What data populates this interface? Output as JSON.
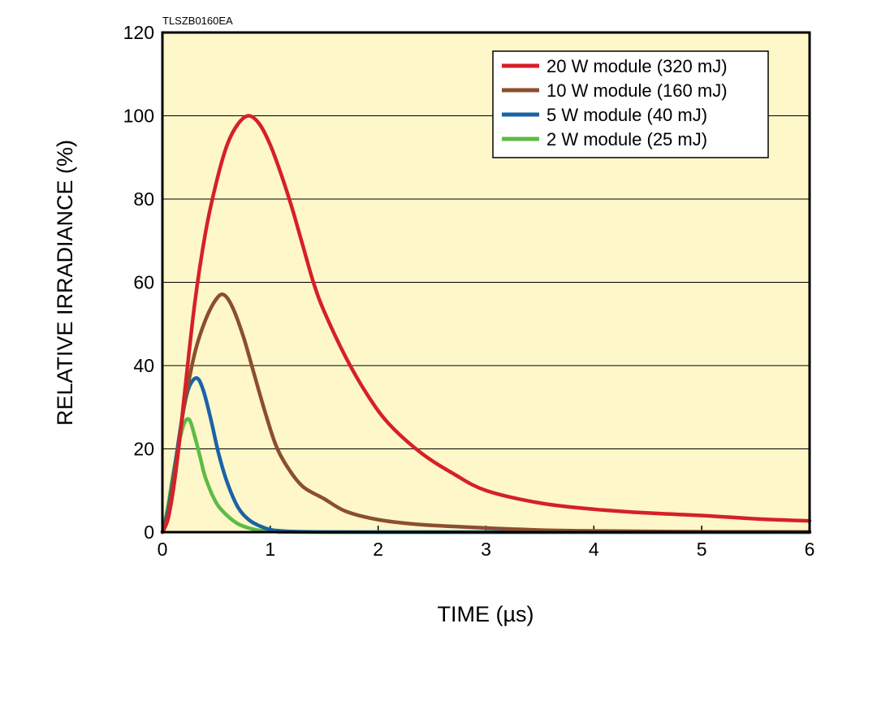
{
  "chart_data": {
    "type": "line",
    "figure_code": "TLSZB0160EA",
    "xlabel": "TIME (µs)",
    "ylabel": "RELATIVE IRRADIANCE (%)",
    "xlim": [
      0,
      6
    ],
    "ylim": [
      0,
      120
    ],
    "xticks": [
      0,
      1,
      2,
      3,
      4,
      5,
      6
    ],
    "yticks": [
      0,
      20,
      40,
      60,
      80,
      100,
      120
    ],
    "grid": "horizontal",
    "background": "#fdf7c9",
    "legend_position": "top-right",
    "series": [
      {
        "name": "20 W module (320 mJ)",
        "color": "#d62027",
        "points": [
          [
            0,
            0
          ],
          [
            0.05,
            3
          ],
          [
            0.1,
            10
          ],
          [
            0.15,
            20
          ],
          [
            0.2,
            32
          ],
          [
            0.3,
            55
          ],
          [
            0.4,
            72
          ],
          [
            0.5,
            84
          ],
          [
            0.6,
            93
          ],
          [
            0.7,
            98
          ],
          [
            0.8,
            100
          ],
          [
            0.9,
            98
          ],
          [
            1.0,
            93
          ],
          [
            1.1,
            86
          ],
          [
            1.2,
            78
          ],
          [
            1.3,
            69
          ],
          [
            1.4,
            60
          ],
          [
            1.5,
            53
          ],
          [
            1.7,
            42
          ],
          [
            1.9,
            33
          ],
          [
            2.1,
            26
          ],
          [
            2.4,
            19
          ],
          [
            2.7,
            14
          ],
          [
            3.0,
            10
          ],
          [
            3.5,
            7
          ],
          [
            4.0,
            5.5
          ],
          [
            4.5,
            4.6
          ],
          [
            5.0,
            4
          ],
          [
            5.5,
            3.2
          ],
          [
            6.0,
            2.7
          ]
        ]
      },
      {
        "name": "10 W module (160 mJ)",
        "color": "#8b4f2e",
        "points": [
          [
            0,
            0
          ],
          [
            0.05,
            4
          ],
          [
            0.1,
            12
          ],
          [
            0.15,
            21
          ],
          [
            0.2,
            30
          ],
          [
            0.3,
            43
          ],
          [
            0.4,
            51
          ],
          [
            0.5,
            56
          ],
          [
            0.57,
            57
          ],
          [
            0.65,
            54
          ],
          [
            0.75,
            47
          ],
          [
            0.85,
            38
          ],
          [
            0.95,
            29
          ],
          [
            1.05,
            21
          ],
          [
            1.15,
            16
          ],
          [
            1.3,
            11
          ],
          [
            1.5,
            8
          ],
          [
            1.7,
            5
          ],
          [
            2.0,
            3
          ],
          [
            2.4,
            1.8
          ],
          [
            3.0,
            1
          ],
          [
            3.5,
            0.5
          ],
          [
            4.0,
            0.3
          ],
          [
            5.0,
            0.1
          ],
          [
            6.0,
            0.05
          ]
        ]
      },
      {
        "name": "5 W module (40 mJ)",
        "color": "#1a63a8",
        "points": [
          [
            0,
            0
          ],
          [
            0.05,
            5
          ],
          [
            0.1,
            13
          ],
          [
            0.15,
            22
          ],
          [
            0.2,
            30
          ],
          [
            0.25,
            35
          ],
          [
            0.32,
            37
          ],
          [
            0.38,
            34
          ],
          [
            0.45,
            27
          ],
          [
            0.52,
            19
          ],
          [
            0.6,
            12
          ],
          [
            0.7,
            6
          ],
          [
            0.8,
            3
          ],
          [
            0.9,
            1.5
          ],
          [
            1.0,
            0.6
          ],
          [
            1.1,
            0.3
          ],
          [
            1.3,
            0.1
          ],
          [
            2.0,
            0
          ],
          [
            6.0,
            0
          ]
        ]
      },
      {
        "name": "2 W module (25 mJ)",
        "color": "#5dbb46",
        "points": [
          [
            0,
            0
          ],
          [
            0.05,
            6
          ],
          [
            0.1,
            14
          ],
          [
            0.15,
            21
          ],
          [
            0.2,
            26
          ],
          [
            0.25,
            27
          ],
          [
            0.3,
            23
          ],
          [
            0.35,
            18
          ],
          [
            0.4,
            13
          ],
          [
            0.5,
            7
          ],
          [
            0.6,
            4
          ],
          [
            0.7,
            2
          ],
          [
            0.8,
            1
          ],
          [
            0.9,
            0.4
          ],
          [
            1.0,
            0.2
          ],
          [
            1.2,
            0.05
          ],
          [
            1.5,
            0
          ],
          [
            6.0,
            0
          ]
        ]
      }
    ]
  }
}
